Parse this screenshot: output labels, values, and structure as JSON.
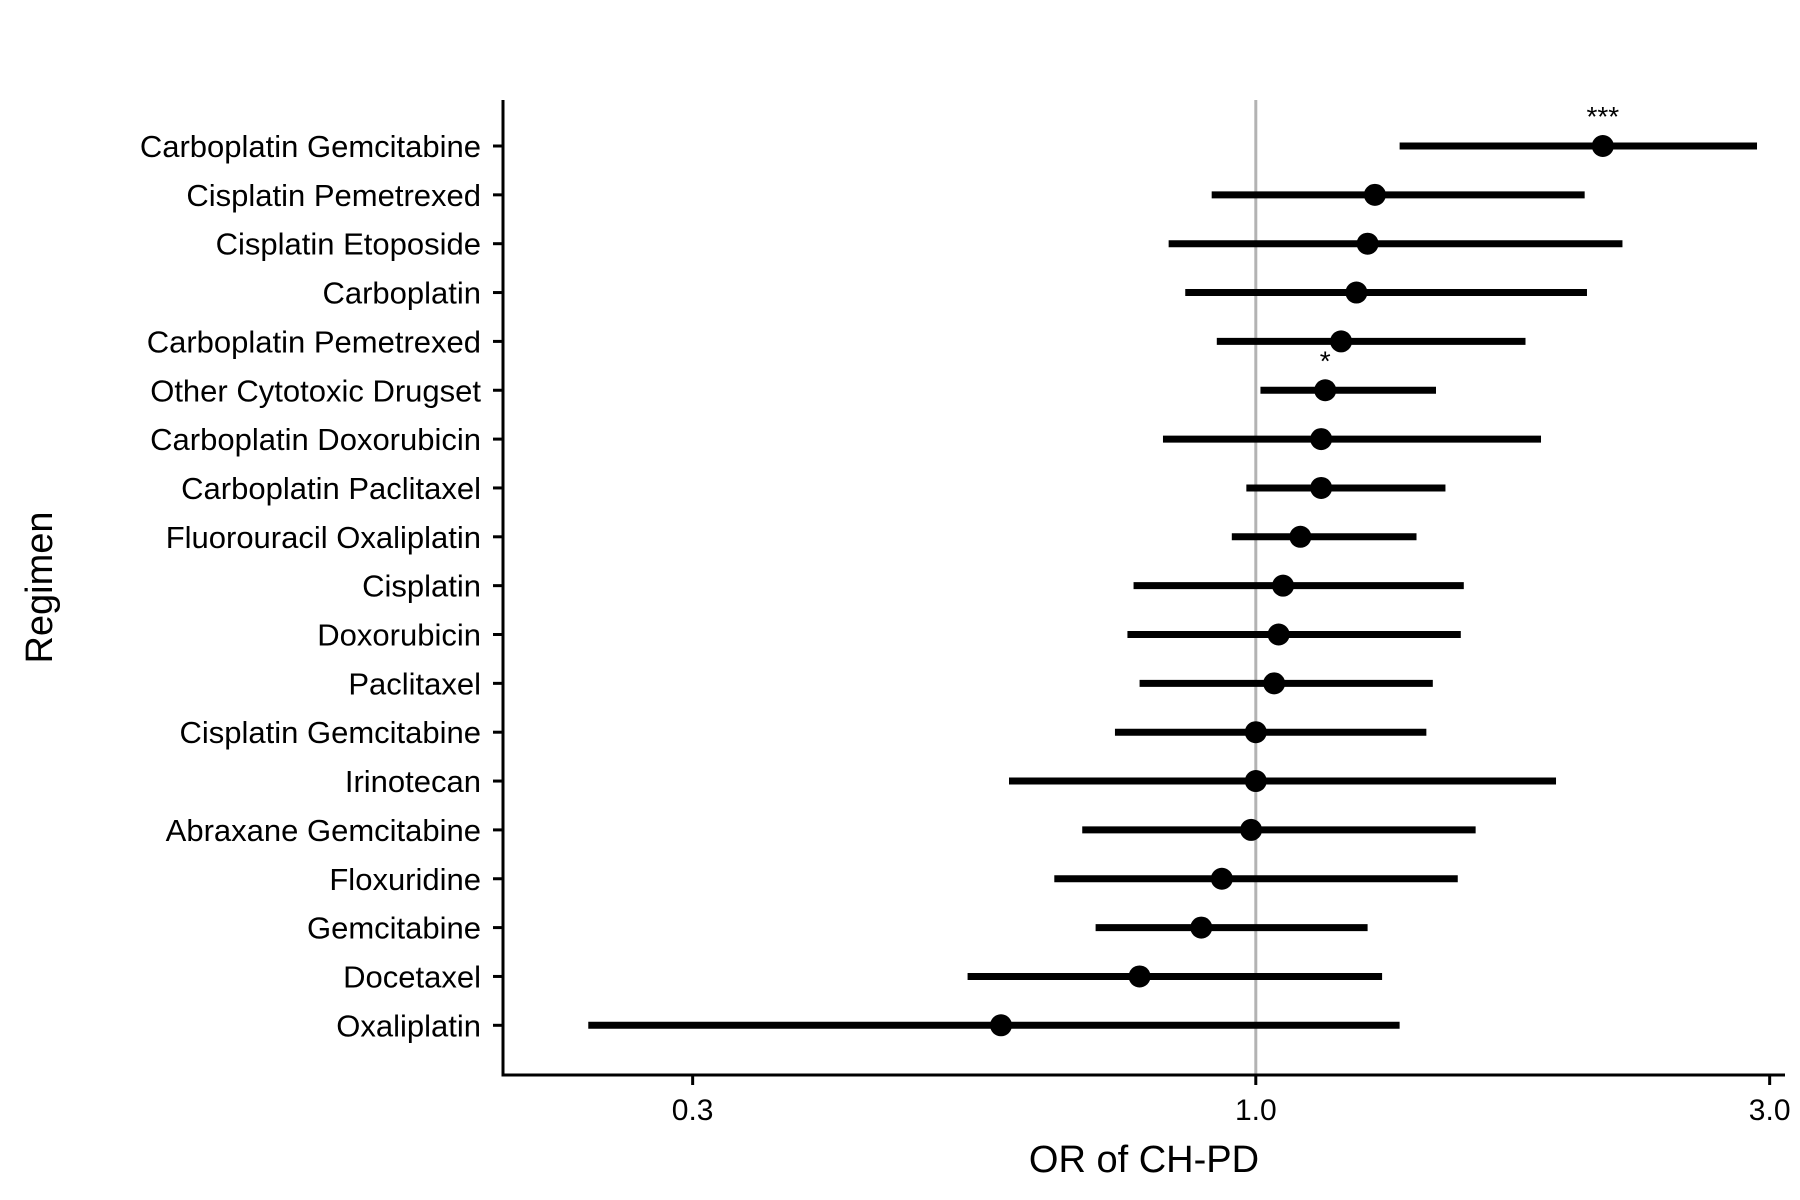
{
  "chart_data": {
    "type": "scatter",
    "subtype": "forest-plot",
    "xlabel": "OR of CH-PD",
    "ylabel": "Regimen",
    "x_scale": "log",
    "xlim": [
      0.2,
      3.1
    ],
    "x_ticks": [
      0.3,
      1.0,
      3.0
    ],
    "x_tick_labels": [
      "0.3",
      "1.0",
      "3.0"
    ],
    "reference_line": 1.0,
    "grid": false,
    "legend": "none",
    "categories": [
      "Carboplatin Gemcitabine",
      "Cisplatin Pemetrexed",
      "Cisplatin Etoposide",
      "Carboplatin",
      "Carboplatin Pemetrexed",
      "Other Cytotoxic Drugset",
      "Carboplatin Doxorubicin",
      "Carboplatin Paclitaxel",
      "Fluorouracil Oxaliplatin",
      "Cisplatin",
      "Doxorubicin",
      "Paclitaxel",
      "Cisplatin Gemcitabine",
      "Irinotecan",
      "Abraxane Gemcitabine",
      "Floxuridine",
      "Gemcitabine",
      "Docetaxel",
      "Oxaliplatin"
    ],
    "estimates": [
      {
        "or": 2.1,
        "lower": 1.36,
        "upper": 2.92,
        "annotation": "***"
      },
      {
        "or": 1.29,
        "lower": 0.91,
        "upper": 2.02,
        "annotation": ""
      },
      {
        "or": 1.27,
        "lower": 0.83,
        "upper": 2.19,
        "annotation": ""
      },
      {
        "or": 1.24,
        "lower": 0.86,
        "upper": 2.03,
        "annotation": ""
      },
      {
        "or": 1.2,
        "lower": 0.92,
        "upper": 1.78,
        "annotation": ""
      },
      {
        "or": 1.16,
        "lower": 1.01,
        "upper": 1.47,
        "annotation": "*"
      },
      {
        "or": 1.15,
        "lower": 0.82,
        "upper": 1.84,
        "annotation": ""
      },
      {
        "or": 1.15,
        "lower": 0.98,
        "upper": 1.5,
        "annotation": ""
      },
      {
        "or": 1.1,
        "lower": 0.95,
        "upper": 1.41,
        "annotation": ""
      },
      {
        "or": 1.06,
        "lower": 0.77,
        "upper": 1.56,
        "annotation": ""
      },
      {
        "or": 1.05,
        "lower": 0.76,
        "upper": 1.55,
        "annotation": ""
      },
      {
        "or": 1.04,
        "lower": 0.78,
        "upper": 1.46,
        "annotation": ""
      },
      {
        "or": 1.0,
        "lower": 0.74,
        "upper": 1.44,
        "annotation": ""
      },
      {
        "or": 1.0,
        "lower": 0.59,
        "upper": 1.9,
        "annotation": ""
      },
      {
        "or": 0.99,
        "lower": 0.69,
        "upper": 1.6,
        "annotation": ""
      },
      {
        "or": 0.93,
        "lower": 0.65,
        "upper": 1.54,
        "annotation": ""
      },
      {
        "or": 0.89,
        "lower": 0.71,
        "upper": 1.27,
        "annotation": ""
      },
      {
        "or": 0.78,
        "lower": 0.54,
        "upper": 1.31,
        "annotation": ""
      },
      {
        "or": 0.58,
        "lower": 0.24,
        "upper": 1.36,
        "annotation": ""
      }
    ]
  },
  "colors": {
    "marks": "#000000",
    "reference_line": "#b3b3b3",
    "axis": "#000000",
    "background": "#ffffff"
  }
}
